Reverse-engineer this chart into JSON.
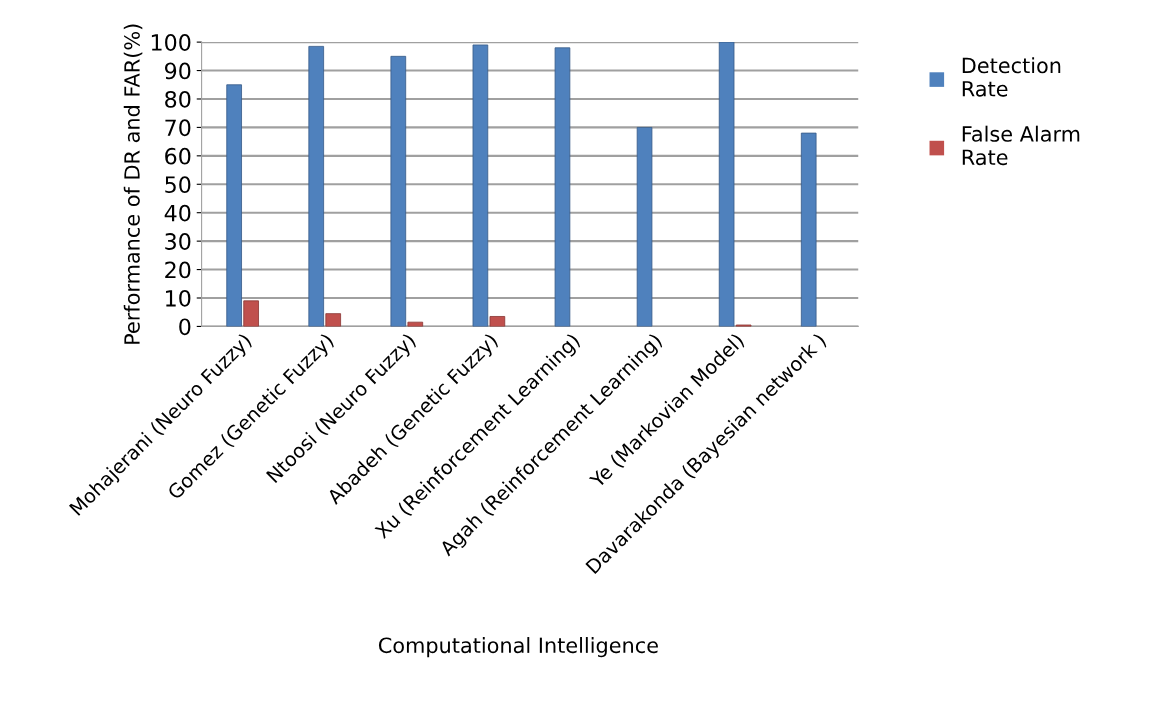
{
  "chart_data": {
    "type": "bar",
    "xlabel": "Computational Intelligence",
    "ylabel": "Performance of DR and FAR(%)",
    "categories": [
      "Mohajerani (Neuro Fuzzy)",
      "Gomez (Genetic Fuzzy)",
      "Ntoosi (Neuro Fuzzy)",
      "Abadeh (Genetic Fuzzy)",
      "Xu (Reinforcement Learning)",
      "Agah (Reinforcement Learning)",
      "Ye (Markovian Model)",
      "Davarakonda (Bayesian network )"
    ],
    "series": [
      {
        "name": "Detection Rate",
        "color": "#4f81bd",
        "values": [
          85,
          98.5,
          95,
          99,
          98,
          70,
          100,
          68
        ]
      },
      {
        "name": "False Alarm Rate",
        "color": "#c0504d",
        "values": [
          9,
          4.5,
          1.5,
          3.5,
          null,
          null,
          0.5,
          null
        ]
      }
    ],
    "ylim": [
      0,
      100
    ],
    "yticks": [
      0,
      10,
      20,
      30,
      40,
      50,
      60,
      70,
      80,
      90,
      100
    ],
    "grid": "y",
    "legend": "right"
  }
}
